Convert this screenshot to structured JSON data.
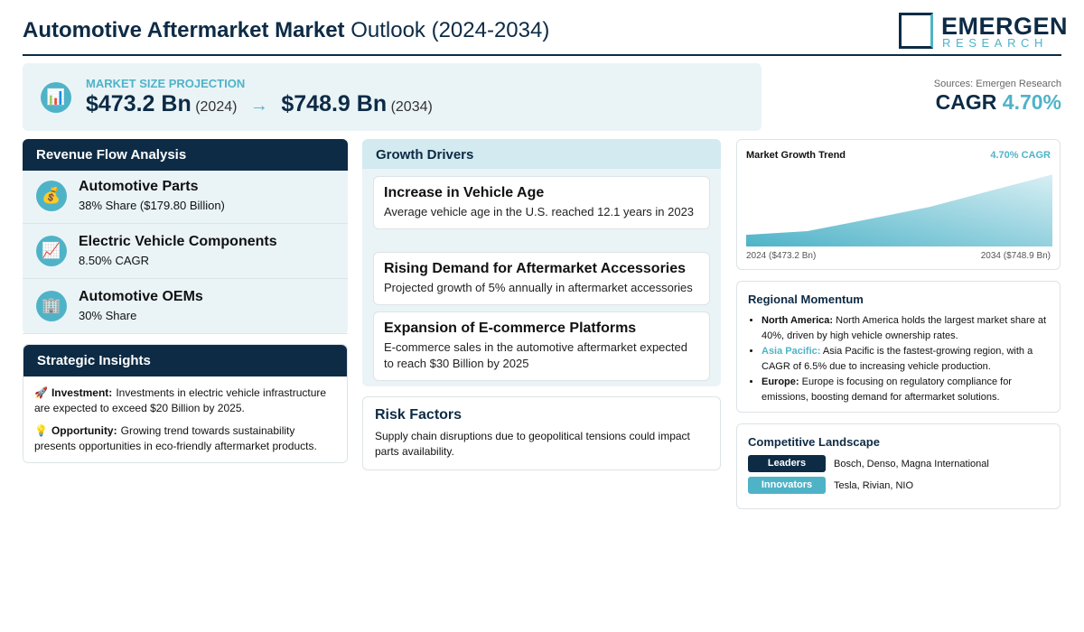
{
  "header": {
    "title_bold": "Automotive Aftermarket Market",
    "title_rest": "Outlook (2024-2034)",
    "logo_main": "EMERGEN",
    "logo_sub": "RESEARCH"
  },
  "projection": {
    "icon": "📊",
    "label": "MARKET SIZE PROJECTION",
    "start_value": "$473.2 Bn",
    "start_year": "(2024)",
    "arrow": "→",
    "end_value": "$748.9 Bn",
    "end_year": "(2034)"
  },
  "source": "Sources: Emergen Research",
  "cagr": {
    "label": "CAGR",
    "value": "4.70%"
  },
  "revenue": {
    "title": "Revenue Flow Analysis",
    "items": [
      {
        "icon": "💰",
        "name": "Automotive Parts",
        "detail": "38% Share ($179.80 Billion)"
      },
      {
        "icon": "📈",
        "name": "Electric Vehicle Components",
        "detail": "8.50% CAGR"
      },
      {
        "icon": "🏢",
        "name": "Automotive OEMs",
        "detail": "30% Share"
      }
    ]
  },
  "insights": {
    "title": "Strategic Insights",
    "items": [
      {
        "icon": "🚀",
        "label": "Investment:",
        "text": "Investments in electric vehicle infrastructure are expected to exceed $20 Billion by 2025."
      },
      {
        "icon": "💡",
        "label": "Opportunity:",
        "text": "Growing trend towards sustainability presents opportunities in eco-friendly aftermarket products."
      }
    ]
  },
  "drivers": {
    "title": "Growth Drivers",
    "items": [
      {
        "title": "Increase in Vehicle Age",
        "text": "Average vehicle age in the U.S. reached 12.1 years in 2023"
      },
      {
        "title": "Rising Demand for Aftermarket Accessories",
        "text": "Projected growth of 5% annually in aftermarket accessories"
      },
      {
        "title": "Expansion of E-commerce Platforms",
        "text": "E-commerce sales in the automotive aftermarket expected to reach $30 Billion by 2025"
      }
    ]
  },
  "risk": {
    "title": "Risk Factors",
    "text": "Supply chain disruptions due to geopolitical tensions could impact parts availability."
  },
  "trend": {
    "title": "Market Growth Trend",
    "badge": "4.70% CAGR",
    "values": [
      473.2,
      490,
      545,
      601,
      675,
      748.9
    ],
    "ylim": [
      420,
      750
    ],
    "start_label": "2024 ($473.2 Bn)",
    "end_label": "2034 ($748.9 Bn)"
  },
  "regional": {
    "title": "Regional Momentum",
    "items": [
      {
        "region": "North America:",
        "text": "North America holds the largest market share at 40%, driven by high vehicle ownership rates."
      },
      {
        "region": "Asia Pacific:",
        "text": "Asia Pacific is the fastest-growing region, with a CAGR of 6.5% due to increasing vehicle production."
      },
      {
        "region": "Europe:",
        "text": "Europe is focusing on regulatory compliance for emissions, boosting demand for aftermarket solutions."
      }
    ]
  },
  "competitive": {
    "title": "Competitive Landscape",
    "rows": [
      {
        "tag": "Leaders",
        "text": "Bosch, Denso, Magna International"
      },
      {
        "tag": "Innovators",
        "text": "Tesla, Rivian, NIO"
      }
    ]
  }
}
